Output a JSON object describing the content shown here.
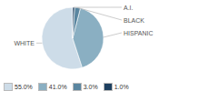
{
  "chart_data": {
    "type": "pie",
    "categories": [
      "WHITE",
      "HISPANIC",
      "BLACK",
      "A.I."
    ],
    "values": [
      55.0,
      41.0,
      3.0,
      1.0
    ],
    "value_labels": [
      "55.0%",
      "41.0%",
      "3.0%",
      "1.0%"
    ],
    "colors": [
      "#cddce8",
      "#8aafc2",
      "#5a86a0",
      "#1e4060"
    ],
    "legend": "lower left"
  }
}
